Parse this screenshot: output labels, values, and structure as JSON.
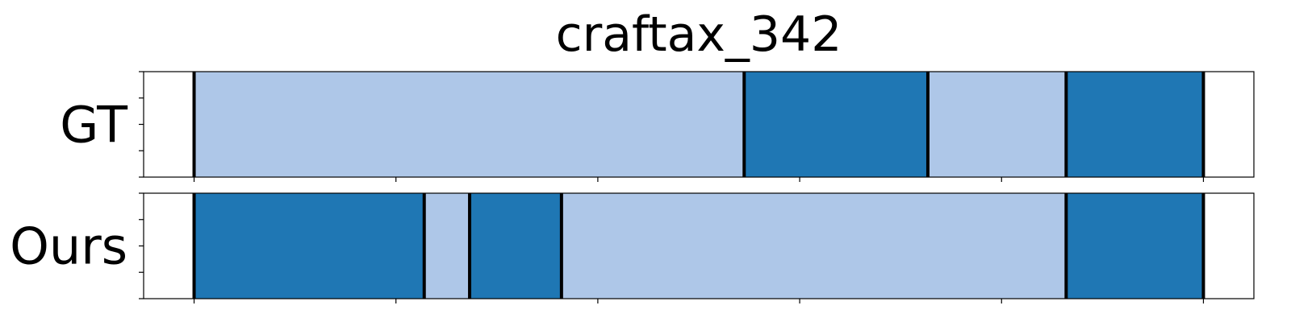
{
  "chart_data": {
    "type": "segmentation-timeline",
    "title": "craftax_342",
    "xlim": [
      -0.5,
      10.5
    ],
    "x_ticks": [
      0,
      2,
      4,
      6,
      8,
      10
    ],
    "y_ticks_per_row": 5,
    "colors": {
      "light": "#aec7e8",
      "dark": "#1f77b4"
    },
    "rows": [
      {
        "label": "GT",
        "segments": [
          {
            "start": 0.0,
            "end": 5.45,
            "class": "light"
          },
          {
            "start": 5.45,
            "end": 7.27,
            "class": "dark"
          },
          {
            "start": 7.27,
            "end": 8.64,
            "class": "light"
          },
          {
            "start": 8.64,
            "end": 10.0,
            "class": "dark"
          }
        ]
      },
      {
        "label": "Ours",
        "segments": [
          {
            "start": 0.0,
            "end": 2.28,
            "class": "dark"
          },
          {
            "start": 2.28,
            "end": 2.73,
            "class": "light"
          },
          {
            "start": 2.73,
            "end": 3.64,
            "class": "dark"
          },
          {
            "start": 3.64,
            "end": 8.64,
            "class": "light"
          },
          {
            "start": 8.64,
            "end": 10.0,
            "class": "dark"
          }
        ]
      }
    ]
  }
}
